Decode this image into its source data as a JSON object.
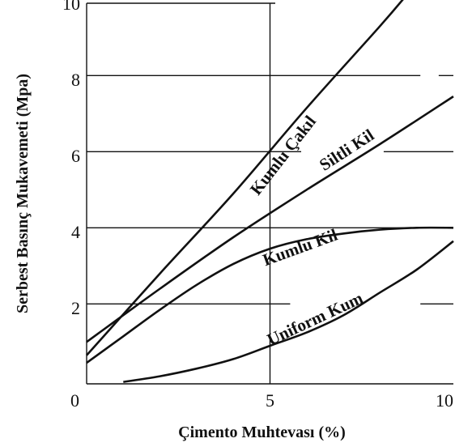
{
  "chart_data": {
    "type": "line",
    "xlabel": "Çimento Muhtevası (%)",
    "ylabel": "Serbest Basınç Mukavemeti (Mpa)",
    "xlim": [
      0,
      10
    ],
    "ylim": [
      0,
      10
    ],
    "x_ticks": [
      "0",
      "5",
      "10"
    ],
    "y_ticks": [
      "2",
      "4",
      "6",
      "8",
      "10"
    ],
    "grid": "partial",
    "series": [
      {
        "name": "Kumlu Çakıl",
        "x": [
          0,
          2,
          4,
          6,
          8,
          8.8
        ],
        "y": [
          0.75,
          2.9,
          5.0,
          7.25,
          9.4,
          10.3
        ]
      },
      {
        "name": "Siltli Kil",
        "x": [
          0,
          2,
          4,
          6,
          8,
          10
        ],
        "y": [
          1.1,
          2.5,
          3.85,
          5.1,
          6.3,
          7.55
        ]
      },
      {
        "name": "Kumlu Kil",
        "x": [
          0,
          1,
          2,
          3,
          4,
          5,
          6,
          7,
          8,
          9,
          10
        ],
        "y": [
          0.55,
          1.25,
          1.95,
          2.6,
          3.15,
          3.55,
          3.8,
          3.95,
          4.05,
          4.1,
          4.1
        ]
      },
      {
        "name": "Uniform Kum",
        "x": [
          1,
          2,
          3,
          4,
          5,
          6,
          7,
          8,
          9,
          10
        ],
        "y": [
          0.05,
          0.2,
          0.4,
          0.65,
          1.0,
          1.35,
          1.8,
          2.4,
          3.0,
          3.75
        ]
      }
    ]
  }
}
